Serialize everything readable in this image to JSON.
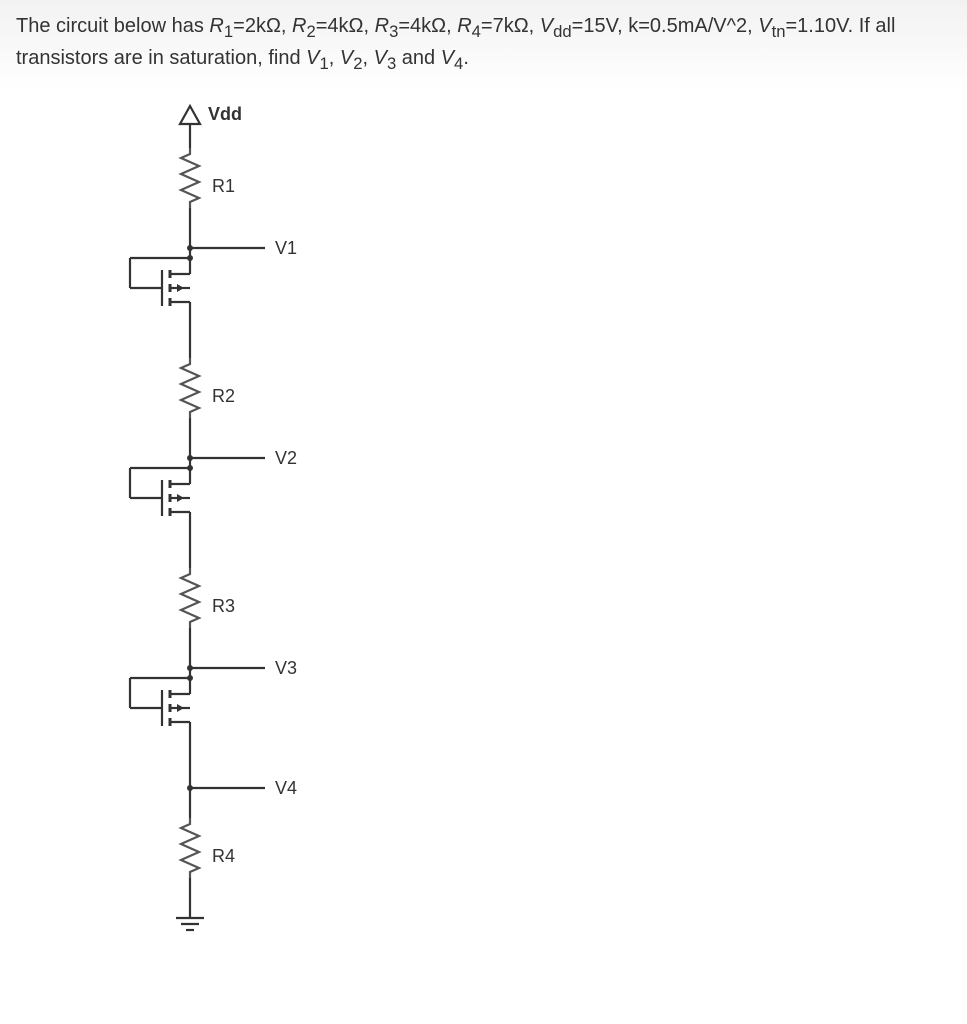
{
  "question": {
    "prefix": "The circuit below has ",
    "params": [
      {
        "sym": "R",
        "sub": "1",
        "val": "=2kΩ, "
      },
      {
        "sym": "R",
        "sub": "2",
        "val": "=4kΩ, "
      },
      {
        "sym": "R",
        "sub": "3",
        "val": "=4kΩ, "
      },
      {
        "sym": "R",
        "sub": "4",
        "val": "=7kΩ, "
      },
      {
        "sym": "V",
        "sub": "dd",
        "val": "=15V, k=0.5mA/V^2, "
      },
      {
        "sym": "V",
        "sub": "tn",
        "val": "=1.10V. "
      }
    ],
    "task_prefix": "If all transistors are in saturation, find ",
    "find": [
      {
        "sym": "V",
        "sub": "1",
        "after": ", "
      },
      {
        "sym": "V",
        "sub": "2",
        "after": ", "
      },
      {
        "sym": "V",
        "sub": "3",
        "after": " and "
      },
      {
        "sym": "V",
        "sub": "4",
        "after": "."
      }
    ]
  },
  "circuit": {
    "vdd_label": "Vdd",
    "resistors": [
      {
        "name": "R1",
        "label": "R1"
      },
      {
        "name": "R2",
        "label": "R2"
      },
      {
        "name": "R3",
        "label": "R3"
      },
      {
        "name": "R4",
        "label": "R4"
      }
    ],
    "nodes": [
      {
        "name": "V1",
        "label": "V1"
      },
      {
        "name": "V2",
        "label": "V2"
      },
      {
        "name": "V3",
        "label": "V3"
      },
      {
        "name": "V4",
        "label": "V4"
      }
    ],
    "colors": {
      "stroke": "#333333",
      "resistor_stroke": "#555555",
      "bg": "#ffffff"
    },
    "stroke_width": 2.2
  }
}
